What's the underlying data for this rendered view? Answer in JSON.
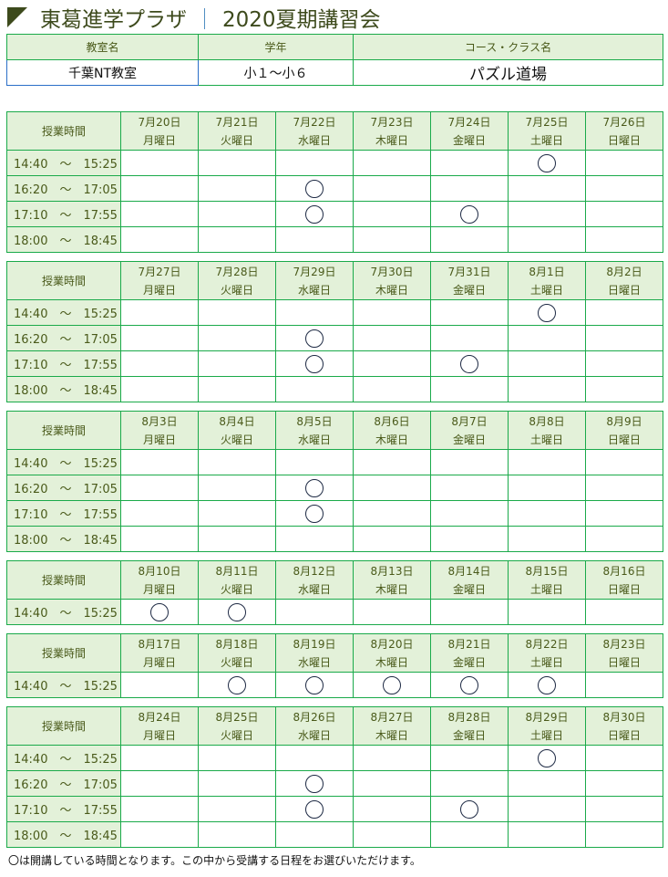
{
  "title": {
    "brand": "東葛進学プラザ",
    "separator": "｜",
    "event": "2020夏期講習会"
  },
  "info": {
    "headers": [
      "教室名",
      "学年",
      "コース・クラス名"
    ],
    "values": [
      "千葉NT教室",
      "小１～小６",
      "パズル道場"
    ]
  },
  "time_header": "授業時間",
  "slots": [
    "14:40　～　15:25",
    "16:20　～　17:05",
    "17:10　～　17:55",
    "18:00　～　18:45"
  ],
  "weeks": [
    {
      "dates": [
        "7月20日",
        "7月21日",
        "7月22日",
        "7月23日",
        "7月24日",
        "7月25日",
        "7月26日"
      ],
      "rows": 4,
      "open": [
        [
          0,
          5
        ],
        [
          1,
          2
        ],
        [
          2,
          2
        ],
        [
          2,
          4
        ]
      ]
    },
    {
      "dates": [
        "7月27日",
        "7月28日",
        "7月29日",
        "7月30日",
        "7月31日",
        "8月1日",
        "8月2日"
      ],
      "rows": 4,
      "open": [
        [
          0,
          5
        ],
        [
          1,
          2
        ],
        [
          2,
          2
        ],
        [
          2,
          4
        ]
      ]
    },
    {
      "dates": [
        "8月3日",
        "8月4日",
        "8月5日",
        "8月6日",
        "8月7日",
        "8月8日",
        "8月9日"
      ],
      "rows": 4,
      "open": [
        [
          1,
          2
        ],
        [
          2,
          2
        ]
      ]
    },
    {
      "dates": [
        "8月10日",
        "8月11日",
        "8月12日",
        "8月13日",
        "8月14日",
        "8月15日",
        "8月16日"
      ],
      "rows": 1,
      "open": [
        [
          0,
          0
        ],
        [
          0,
          1
        ]
      ]
    },
    {
      "dates": [
        "8月17日",
        "8月18日",
        "8月19日",
        "8月20日",
        "8月21日",
        "8月22日",
        "8月23日"
      ],
      "rows": 1,
      "open": [
        [
          0,
          1
        ],
        [
          0,
          2
        ],
        [
          0,
          3
        ],
        [
          0,
          4
        ],
        [
          0,
          5
        ]
      ]
    },
    {
      "dates": [
        "8月24日",
        "8月25日",
        "8月26日",
        "8月27日",
        "8月28日",
        "8月29日",
        "8月30日"
      ],
      "rows": 4,
      "open": [
        [
          0,
          5
        ],
        [
          1,
          2
        ],
        [
          2,
          2
        ],
        [
          2,
          4
        ]
      ]
    }
  ],
  "weekdays": [
    "月曜日",
    "火曜日",
    "水曜日",
    "木曜日",
    "金曜日",
    "土曜日",
    "日曜日"
  ],
  "open_mark_icon": "circle-outline",
  "note": "〇は開講している時間となります。この中から受講する日程をお選びいただけます。",
  "colors": {
    "border": "#1aaa4a",
    "header_bg": "#e3f1d9",
    "title": "#3d4a1c",
    "highlight_border": "#2a6ec8"
  }
}
